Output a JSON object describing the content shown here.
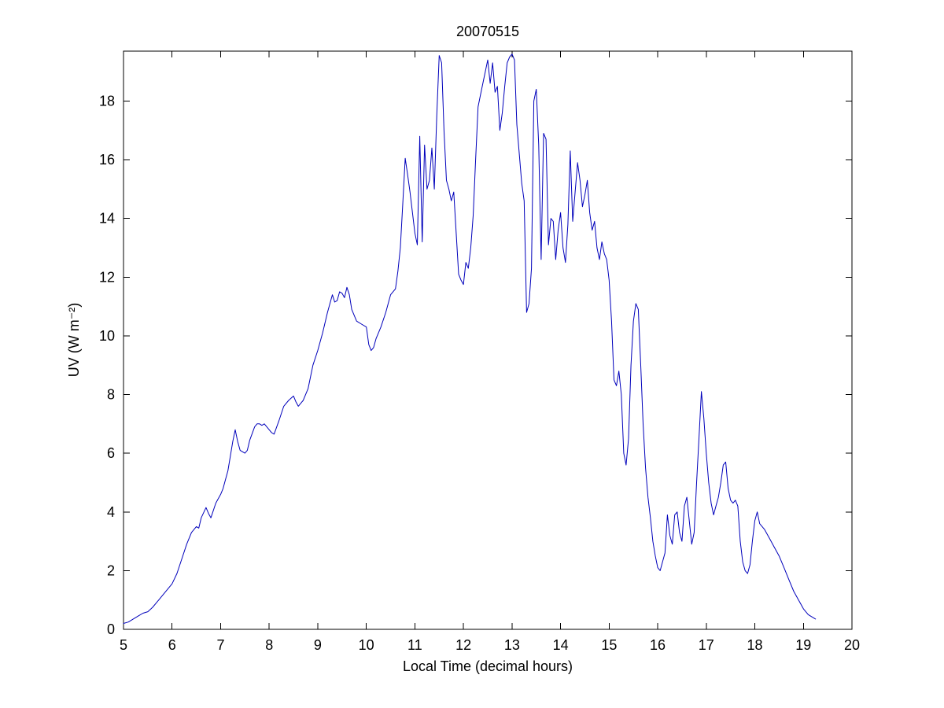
{
  "figure": {
    "title": "20070515"
  },
  "chart_data": {
    "type": "line",
    "title": "20070515",
    "xlabel": "Local Time (decimal hours)",
    "ylabel": "UV (W m⁻²)",
    "xlim": [
      5,
      20
    ],
    "ylim": [
      0,
      19.7
    ],
    "xticks": [
      5,
      6,
      7,
      8,
      9,
      10,
      11,
      12,
      13,
      14,
      15,
      16,
      17,
      18,
      19,
      20
    ],
    "yticks": [
      0,
      2,
      4,
      6,
      8,
      10,
      12,
      14,
      16,
      18
    ],
    "grid": false,
    "legend": null,
    "line_color": "#0000bb",
    "background": "#ffffff",
    "x": [
      5.0,
      5.1,
      5.2,
      5.3,
      5.4,
      5.5,
      5.6,
      5.7,
      5.8,
      5.9,
      6.0,
      6.1,
      6.2,
      6.3,
      6.4,
      6.5,
      6.55,
      6.6,
      6.7,
      6.75,
      6.8,
      6.9,
      7.0,
      7.05,
      7.1,
      7.15,
      7.2,
      7.25,
      7.3,
      7.35,
      7.4,
      7.5,
      7.55,
      7.6,
      7.7,
      7.75,
      7.8,
      7.85,
      7.9,
      7.95,
      8.0,
      8.05,
      8.1,
      8.2,
      8.3,
      8.4,
      8.5,
      8.55,
      8.6,
      8.7,
      8.8,
      8.85,
      8.9,
      9.0,
      9.05,
      9.1,
      9.2,
      9.3,
      9.35,
      9.4,
      9.45,
      9.5,
      9.55,
      9.6,
      9.65,
      9.7,
      9.8,
      9.9,
      10.0,
      10.05,
      10.1,
      10.15,
      10.2,
      10.3,
      10.4,
      10.5,
      10.55,
      10.6,
      10.65,
      10.7,
      10.75,
      10.8,
      10.85,
      10.9,
      10.95,
      11.0,
      11.05,
      11.1,
      11.15,
      11.2,
      11.25,
      11.3,
      11.35,
      11.4,
      11.45,
      11.5,
      11.55,
      11.6,
      11.65,
      11.7,
      11.75,
      11.8,
      11.85,
      11.9,
      11.95,
      12.0,
      12.05,
      12.1,
      12.15,
      12.2,
      12.25,
      12.3,
      12.35,
      12.4,
      12.45,
      12.5,
      12.55,
      12.6,
      12.65,
      12.7,
      12.75,
      12.8,
      12.85,
      12.9,
      12.95,
      13.0,
      13.05,
      13.1,
      13.15,
      13.2,
      13.25,
      13.3,
      13.35,
      13.4,
      13.45,
      13.5,
      13.55,
      13.6,
      13.65,
      13.7,
      13.75,
      13.8,
      13.85,
      13.9,
      13.95,
      14.0,
      14.05,
      14.1,
      14.15,
      14.2,
      14.25,
      14.3,
      14.35,
      14.4,
      14.45,
      14.5,
      14.55,
      14.6,
      14.65,
      14.7,
      14.75,
      14.8,
      14.85,
      14.9,
      14.95,
      15.0,
      15.05,
      15.1,
      15.15,
      15.2,
      15.25,
      15.3,
      15.35,
      15.4,
      15.45,
      15.5,
      15.55,
      15.6,
      15.65,
      15.7,
      15.75,
      15.8,
      15.85,
      15.9,
      15.95,
      16.0,
      16.05,
      16.1,
      16.15,
      16.2,
      16.25,
      16.3,
      16.35,
      16.4,
      16.45,
      16.5,
      16.55,
      16.6,
      16.65,
      16.7,
      16.75,
      16.8,
      16.85,
      16.9,
      16.95,
      17.0,
      17.05,
      17.1,
      17.15,
      17.2,
      17.25,
      17.3,
      17.35,
      17.4,
      17.45,
      17.5,
      17.55,
      17.6,
      17.65,
      17.7,
      17.75,
      17.8,
      17.85,
      17.9,
      17.95,
      18.0,
      18.05,
      18.1,
      18.2,
      18.3,
      18.4,
      18.5,
      18.6,
      18.7,
      18.8,
      18.9,
      19.0,
      19.1,
      19.2,
      19.25
    ],
    "y": [
      0.2,
      0.25,
      0.35,
      0.45,
      0.55,
      0.6,
      0.75,
      0.95,
      1.15,
      1.35,
      1.55,
      1.9,
      2.4,
      2.9,
      3.3,
      3.5,
      3.45,
      3.8,
      4.15,
      3.95,
      3.8,
      4.3,
      4.6,
      4.8,
      5.1,
      5.4,
      5.9,
      6.4,
      6.8,
      6.4,
      6.1,
      6.0,
      6.1,
      6.45,
      6.9,
      7.0,
      7.0,
      6.95,
      7.0,
      6.9,
      6.8,
      6.7,
      6.65,
      7.1,
      7.6,
      7.8,
      7.95,
      7.75,
      7.6,
      7.8,
      8.2,
      8.6,
      9.0,
      9.5,
      9.8,
      10.1,
      10.8,
      11.4,
      11.15,
      11.2,
      11.5,
      11.45,
      11.3,
      11.65,
      11.4,
      10.9,
      10.5,
      10.4,
      10.3,
      9.7,
      9.5,
      9.6,
      9.9,
      10.3,
      10.8,
      11.4,
      11.5,
      11.6,
      12.2,
      13.0,
      14.5,
      16.05,
      15.5,
      14.9,
      14.2,
      13.5,
      13.1,
      16.8,
      13.2,
      16.5,
      15.0,
      15.3,
      16.4,
      15.0,
      17.5,
      19.55,
      19.3,
      17.0,
      15.3,
      15.0,
      14.6,
      14.9,
      13.5,
      12.1,
      11.9,
      11.75,
      12.5,
      12.3,
      13.0,
      14.1,
      16.0,
      17.8,
      18.2,
      18.6,
      19.0,
      19.4,
      18.6,
      19.3,
      18.3,
      18.5,
      17.0,
      17.6,
      18.5,
      19.3,
      19.5,
      19.6,
      19.4,
      17.2,
      16.2,
      15.2,
      14.6,
      10.8,
      11.1,
      12.3,
      18.0,
      18.4,
      16.5,
      12.6,
      16.9,
      16.7,
      13.1,
      14.0,
      13.9,
      12.6,
      13.6,
      14.2,
      13.0,
      12.5,
      13.8,
      16.3,
      13.9,
      14.9,
      15.9,
      15.3,
      14.4,
      14.8,
      15.3,
      14.2,
      13.6,
      13.9,
      13.0,
      12.6,
      13.2,
      12.8,
      12.6,
      11.9,
      10.5,
      8.5,
      8.3,
      8.8,
      8.0,
      6.0,
      5.6,
      6.5,
      9.0,
      10.5,
      11.1,
      10.9,
      9.0,
      7.0,
      5.5,
      4.5,
      3.8,
      3.0,
      2.5,
      2.1,
      2.0,
      2.3,
      2.6,
      3.9,
      3.2,
      2.9,
      3.9,
      4.0,
      3.3,
      3.0,
      4.2,
      4.5,
      3.7,
      2.9,
      3.3,
      5.0,
      6.5,
      8.1,
      7.2,
      6.0,
      5.0,
      4.3,
      3.9,
      4.2,
      4.5,
      5.0,
      5.6,
      5.7,
      4.8,
      4.4,
      4.3,
      4.4,
      4.2,
      3.0,
      2.3,
      2.0,
      1.9,
      2.2,
      3.0,
      3.7,
      4.0,
      3.6,
      3.4,
      3.1,
      2.8,
      2.5,
      2.1,
      1.7,
      1.3,
      1.0,
      0.7,
      0.5,
      0.4,
      0.35
    ]
  }
}
